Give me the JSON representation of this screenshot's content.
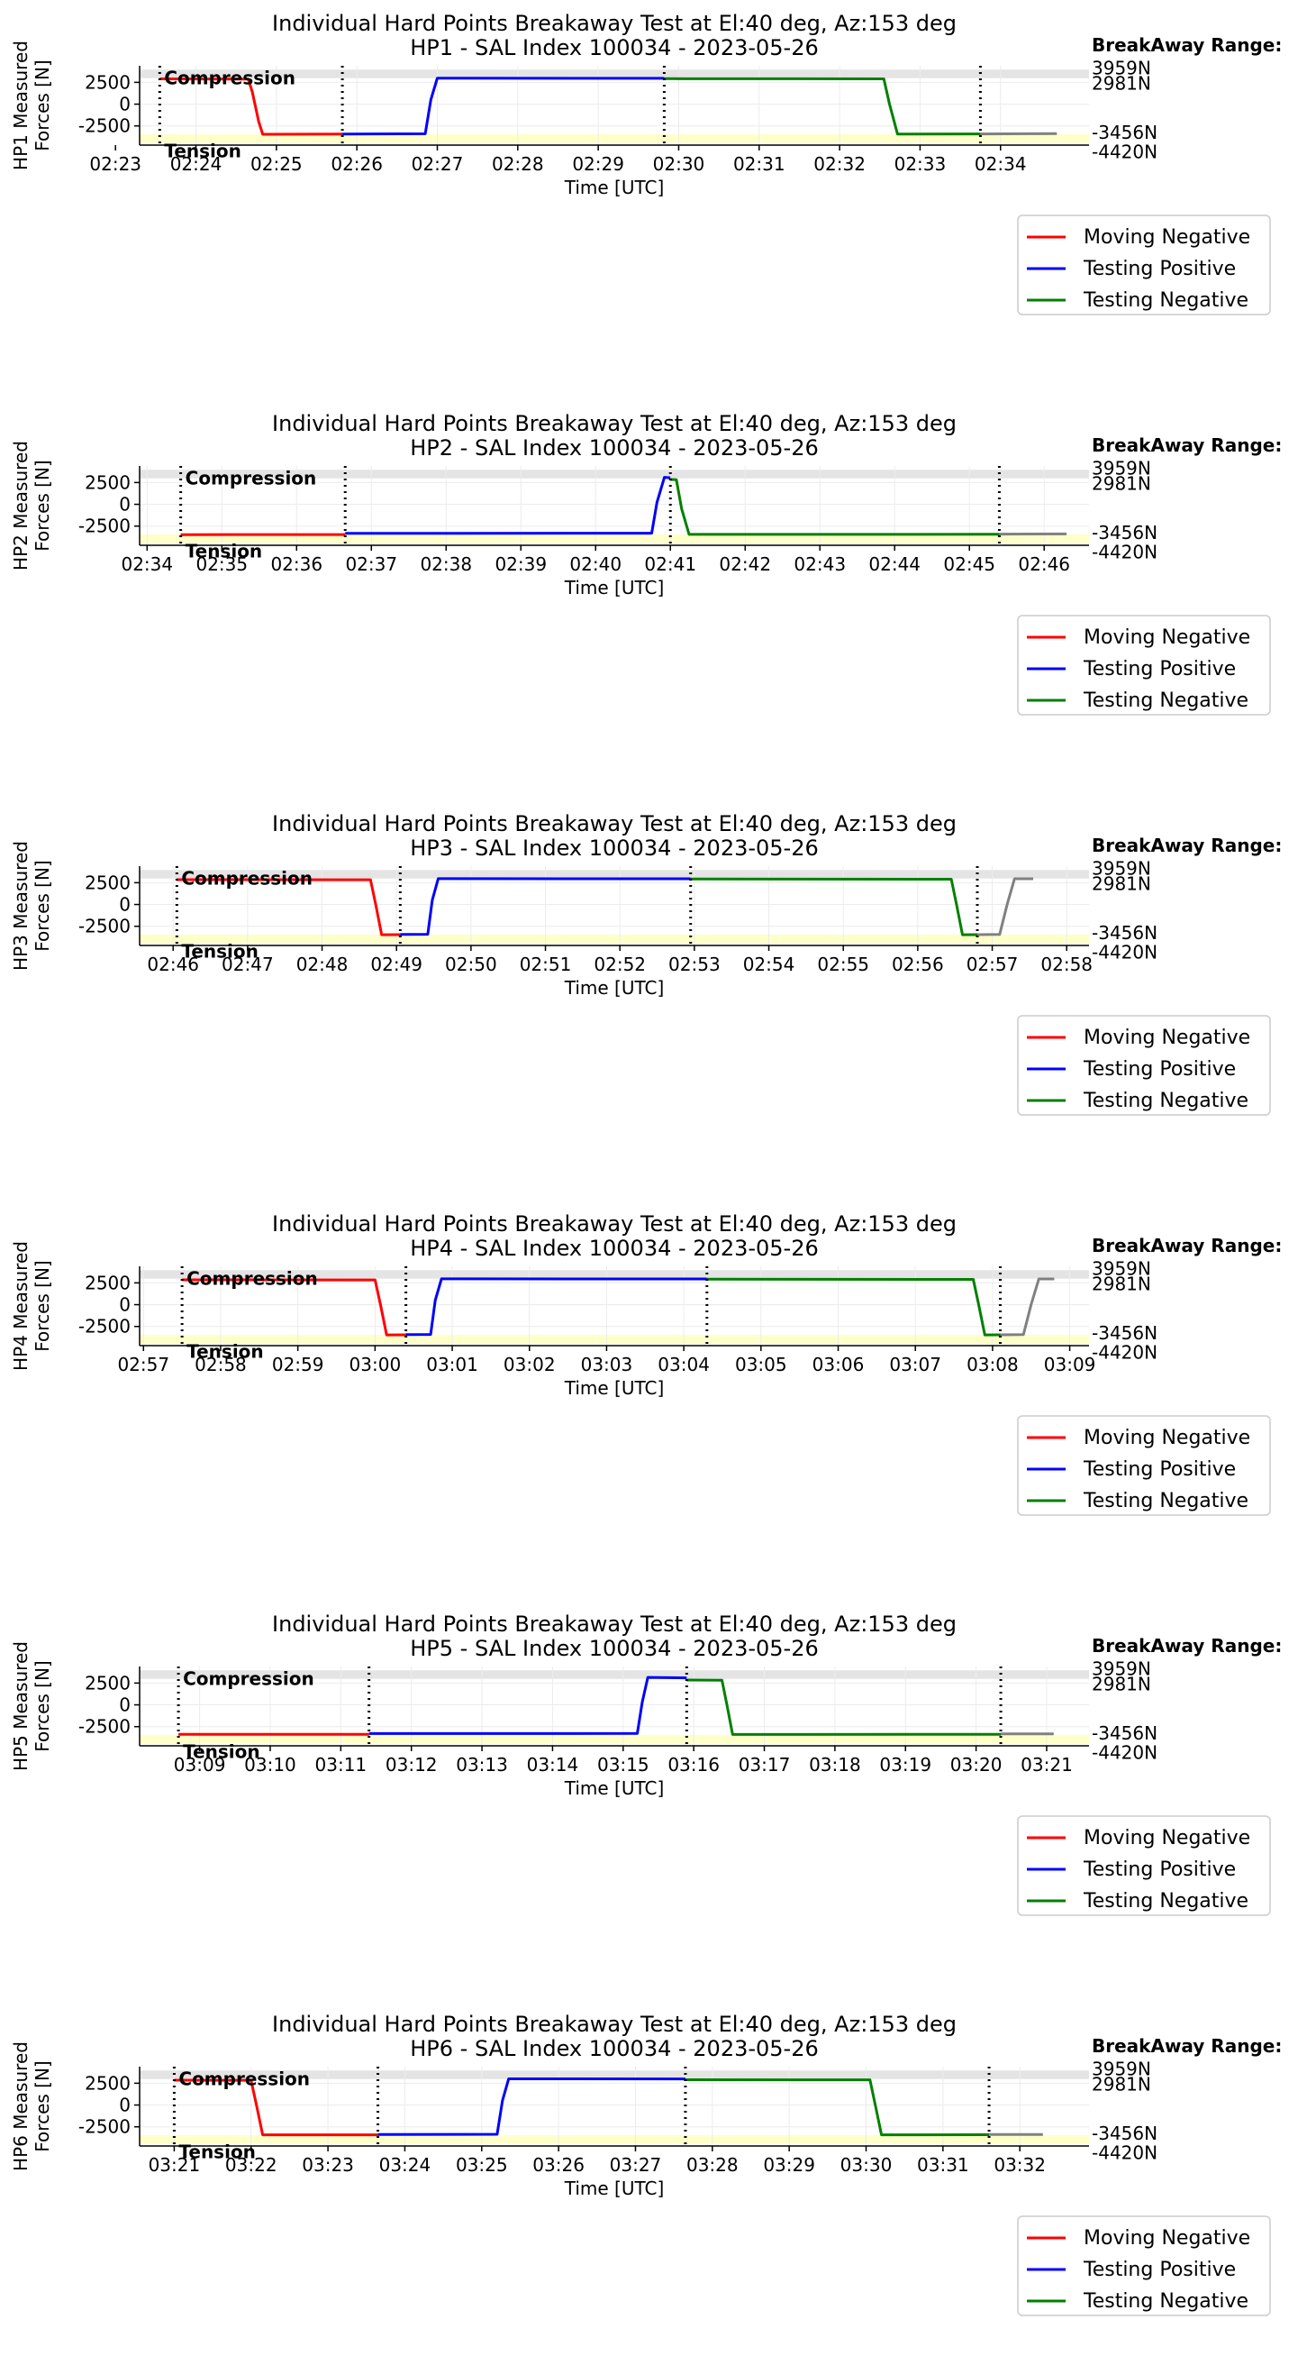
{
  "chart_data": [
    {
      "type": "line",
      "title": "Individual Hard Points Breakaway Test at El:40 deg, Az:153 deg",
      "subtitle": "HP1 - SAL Index 100034 - 2023-05-26",
      "ylabel": [
        "HP1 Measured",
        "Forces [N]"
      ],
      "xlabel": "Time [UTC]",
      "start_minute": 143,
      "xlim": [
        143.3,
        155.1
      ],
      "ylim": [
        -4700,
        4400
      ],
      "yticks": [
        2500,
        0,
        -2500
      ],
      "xticks": [
        "02:23",
        "02:24",
        "02:25",
        "02:26",
        "02:27",
        "02:28",
        "02:29",
        "02:30",
        "02:31",
        "02:32",
        "02:33",
        "02:34"
      ],
      "zones": {
        "compression": {
          "label": "Compression",
          "range": [
            2981,
            3959
          ]
        },
        "tension": {
          "label": "Tension",
          "range": [
            -4420,
            -3456
          ]
        }
      },
      "breakaway": {
        "heading": "BreakAway Range:",
        "labels": [
          {
            "y": 3959,
            "text": "3959N"
          },
          {
            "y": 2981,
            "text": "2981N"
          },
          {
            "y": -3456,
            "text": "-3456N"
          },
          {
            "y": -4420,
            "text": "-4420N"
          }
        ]
      },
      "vlines": [
        143.55,
        145.82,
        149.82,
        153.75
      ],
      "series": [
        {
          "name": "Moving Negative",
          "color": "#ff0000",
          "x": [
            143.55,
            144.65,
            144.7,
            144.78,
            144.83,
            145.82
          ],
          "y": [
            2900,
            2870,
            1400,
            -2000,
            -3460,
            -3430
          ]
        },
        {
          "name": "Testing Positive",
          "color": "#0000ff",
          "x": [
            145.82,
            146.85,
            146.92,
            147.0,
            149.82
          ],
          "y": [
            -3430,
            -3400,
            500,
            2980,
            2960
          ]
        },
        {
          "name": "Testing Negative",
          "color": "#008000",
          "x": [
            149.82,
            152.55,
            152.62,
            152.72,
            153.75
          ],
          "y": [
            2920,
            2900,
            0,
            -3440,
            -3420
          ]
        },
        {
          "name": "",
          "color": "#808080",
          "x": [
            153.75,
            154.7
          ],
          "y": [
            -3420,
            -3380
          ]
        }
      ],
      "legend": [
        "Moving Negative",
        "Testing Positive",
        "Testing Negative"
      ]
    },
    {
      "type": "line",
      "title": "Individual Hard Points Breakaway Test at El:40 deg, Az:153 deg",
      "subtitle": "HP2 - SAL Index 100034 - 2023-05-26",
      "ylabel": [
        "HP2 Measured",
        "Forces [N]"
      ],
      "xlabel": "Time [UTC]",
      "start_minute": 154,
      "xlim": [
        153.9,
        166.6
      ],
      "ylim": [
        -4700,
        4400
      ],
      "yticks": [
        2500,
        0,
        -2500
      ],
      "xticks": [
        "02:34",
        "02:35",
        "02:36",
        "02:37",
        "02:38",
        "02:39",
        "02:40",
        "02:41",
        "02:42",
        "02:43",
        "02:44",
        "02:45",
        "02:46"
      ],
      "zones": {
        "compression": {
          "label": "Compression",
          "range": [
            2981,
            3959
          ]
        },
        "tension": {
          "label": "Tension",
          "range": [
            -4420,
            -3456
          ]
        }
      },
      "breakaway": {
        "heading": "BreakAway Range:",
        "labels": [
          {
            "y": 3959,
            "text": "3959N"
          },
          {
            "y": 2981,
            "text": "2981N"
          },
          {
            "y": -3456,
            "text": "-3456N"
          },
          {
            "y": -4420,
            "text": "-4420N"
          }
        ]
      },
      "vlines": [
        154.45,
        156.65,
        161.0,
        165.4
      ],
      "series": [
        {
          "name": "Moving Negative",
          "color": "#ff0000",
          "x": [
            154.45,
            156.65
          ],
          "y": [
            -3480,
            -3470
          ]
        },
        {
          "name": "Testing Positive",
          "color": "#0000ff",
          "x": [
            156.65,
            160.75,
            160.82,
            160.92,
            161.0
          ],
          "y": [
            -3330,
            -3310,
            200,
            3100,
            3050
          ]
        },
        {
          "name": "Testing Negative",
          "color": "#008000",
          "x": [
            161.0,
            161.08,
            161.15,
            161.25,
            165.4
          ],
          "y": [
            2850,
            2820,
            -500,
            -3450,
            -3440
          ]
        },
        {
          "name": "",
          "color": "#808080",
          "x": [
            165.4,
            166.3
          ],
          "y": [
            -3420,
            -3400
          ]
        }
      ],
      "legend": [
        "Moving Negative",
        "Testing Positive",
        "Testing Negative"
      ]
    },
    {
      "type": "line",
      "title": "Individual Hard Points Breakaway Test at El:40 deg, Az:153 deg",
      "subtitle": "HP3 - SAL Index 100034 - 2023-05-26",
      "ylabel": [
        "HP3 Measured",
        "Forces [N]"
      ],
      "xlabel": "Time [UTC]",
      "start_minute": 166,
      "xlim": [
        165.55,
        178.3
      ],
      "ylim": [
        -4700,
        4400
      ],
      "yticks": [
        2500,
        0,
        -2500
      ],
      "xticks": [
        "02:46",
        "02:47",
        "02:48",
        "02:49",
        "02:50",
        "02:51",
        "02:52",
        "02:53",
        "02:54",
        "02:55",
        "02:56",
        "02:57",
        "02:58"
      ],
      "zones": {
        "compression": {
          "label": "Compression",
          "range": [
            2981,
            3959
          ]
        },
        "tension": {
          "label": "Tension",
          "range": [
            -4420,
            -3456
          ]
        }
      },
      "breakaway": {
        "heading": "BreakAway Range:",
        "labels": [
          {
            "y": 3959,
            "text": "3959N"
          },
          {
            "y": 2981,
            "text": "2981N"
          },
          {
            "y": -3456,
            "text": "-3456N"
          },
          {
            "y": -4420,
            "text": "-4420N"
          }
        ]
      },
      "vlines": [
        166.05,
        169.05,
        172.95,
        176.8
      ],
      "series": [
        {
          "name": "Moving Negative",
          "color": "#ff0000",
          "x": [
            166.05,
            168.65,
            168.72,
            168.8,
            169.05
          ],
          "y": [
            2850,
            2840,
            0,
            -3470,
            -3460
          ]
        },
        {
          "name": "Testing Positive",
          "color": "#0000ff",
          "x": [
            169.05,
            169.42,
            169.48,
            169.56,
            172.95
          ],
          "y": [
            -3440,
            -3420,
            500,
            2960,
            2950
          ]
        },
        {
          "name": "Testing Negative",
          "color": "#008000",
          "x": [
            172.95,
            176.45,
            176.52,
            176.6,
            176.8
          ],
          "y": [
            2920,
            2900,
            0,
            -3470,
            -3460
          ]
        },
        {
          "name": "",
          "color": "#808080",
          "x": [
            176.8,
            177.1,
            177.2,
            177.3,
            177.55
          ],
          "y": [
            -3460,
            -3440,
            0,
            2950,
            2950
          ]
        }
      ],
      "legend": [
        "Moving Negative",
        "Testing Positive",
        "Testing Negative"
      ]
    },
    {
      "type": "line",
      "title": "Individual Hard Points Breakaway Test at El:40 deg, Az:153 deg",
      "subtitle": "HP4 - SAL Index 100034 - 2023-05-26",
      "ylabel": [
        "HP4 Measured",
        "Forces [N]"
      ],
      "xlabel": "Time [UTC]",
      "start_minute": 177,
      "xlim": [
        176.95,
        189.25
      ],
      "ylim": [
        -4700,
        4400
      ],
      "yticks": [
        2500,
        0,
        -2500
      ],
      "xticks": [
        "02:57",
        "02:58",
        "02:59",
        "03:00",
        "03:01",
        "03:02",
        "03:03",
        "03:04",
        "03:05",
        "03:06",
        "03:07",
        "03:08",
        "03:09"
      ],
      "zones": {
        "compression": {
          "label": "Compression",
          "range": [
            2981,
            3959
          ]
        },
        "tension": {
          "label": "Tension",
          "range": [
            -4420,
            -3456
          ]
        }
      },
      "breakaway": {
        "heading": "BreakAway Range:",
        "labels": [
          {
            "y": 3959,
            "text": "3959N"
          },
          {
            "y": 2981,
            "text": "2981N"
          },
          {
            "y": -3456,
            "text": "-3456N"
          },
          {
            "y": -4420,
            "text": "-4420N"
          }
        ]
      },
      "vlines": [
        177.5,
        180.4,
        184.3,
        188.1
      ],
      "series": [
        {
          "name": "Moving Negative",
          "color": "#ff0000",
          "x": [
            177.5,
            180.0,
            180.07,
            180.15,
            180.4
          ],
          "y": [
            2850,
            2840,
            0,
            -3470,
            -3460
          ]
        },
        {
          "name": "Testing Positive",
          "color": "#0000ff",
          "x": [
            180.4,
            180.72,
            180.78,
            180.86,
            184.3
          ],
          "y": [
            -3440,
            -3420,
            500,
            2960,
            2950
          ]
        },
        {
          "name": "Testing Negative",
          "color": "#008000",
          "x": [
            184.3,
            187.75,
            187.82,
            187.9,
            188.1
          ],
          "y": [
            2920,
            2900,
            0,
            -3470,
            -3460
          ]
        },
        {
          "name": "",
          "color": "#808080",
          "x": [
            188.1,
            188.4,
            188.5,
            188.6,
            188.8
          ],
          "y": [
            -3460,
            -3440,
            0,
            2950,
            2950
          ]
        }
      ],
      "legend": [
        "Moving Negative",
        "Testing Positive",
        "Testing Negative"
      ]
    },
    {
      "type": "line",
      "title": "Individual Hard Points Breakaway Test at El:40 deg, Az:153 deg",
      "subtitle": "HP5 - SAL Index 100034 - 2023-05-26",
      "ylabel": [
        "HP5 Measured",
        "Forces [N]"
      ],
      "xlabel": "Time [UTC]",
      "start_minute": 189,
      "xlim": [
        188.15,
        201.6
      ],
      "ylim": [
        -4700,
        4400
      ],
      "yticks": [
        2500,
        0,
        -2500
      ],
      "xticks": [
        "03:09",
        "03:10",
        "03:11",
        "03:12",
        "03:13",
        "03:14",
        "03:15",
        "03:16",
        "03:17",
        "03:18",
        "03:19",
        "03:20",
        "03:21"
      ],
      "zones": {
        "compression": {
          "label": "Compression",
          "range": [
            2981,
            3959
          ]
        },
        "tension": {
          "label": "Tension",
          "range": [
            -4420,
            -3456
          ]
        }
      },
      "breakaway": {
        "heading": "BreakAway Range:",
        "labels": [
          {
            "y": 3959,
            "text": "3959N"
          },
          {
            "y": 2981,
            "text": "2981N"
          },
          {
            "y": -3456,
            "text": "-3456N"
          },
          {
            "y": -4420,
            "text": "-4420N"
          }
        ]
      },
      "vlines": [
        188.7,
        191.4,
        195.9,
        200.35
      ],
      "series": [
        {
          "name": "Moving Negative",
          "color": "#ff0000",
          "x": [
            188.7,
            191.4
          ],
          "y": [
            -3380,
            -3390
          ]
        },
        {
          "name": "Testing Positive",
          "color": "#0000ff",
          "x": [
            191.4,
            195.2,
            195.27,
            195.35,
            195.9
          ],
          "y": [
            -3290,
            -3280,
            300,
            3150,
            3100
          ]
        },
        {
          "name": "Testing Negative",
          "color": "#008000",
          "x": [
            195.9,
            196.4,
            196.47,
            196.55,
            200.35
          ],
          "y": [
            2850,
            2830,
            0,
            -3400,
            -3380
          ]
        },
        {
          "name": "",
          "color": "#808080",
          "x": [
            200.35,
            201.1
          ],
          "y": [
            -3340,
            -3320
          ]
        }
      ],
      "legend": [
        "Moving Negative",
        "Testing Positive",
        "Testing Negative"
      ]
    },
    {
      "type": "line",
      "title": "Individual Hard Points Breakaway Test at El:40 deg, Az:153 deg",
      "subtitle": "HP6 - SAL Index 100034 - 2023-05-26",
      "ylabel": [
        "HP6 Measured",
        "Forces [N]"
      ],
      "xlabel": "Time [UTC]",
      "start_minute": 201,
      "xlim": [
        200.55,
        212.9
      ],
      "ylim": [
        -4700,
        4400
      ],
      "yticks": [
        2500,
        0,
        -2500
      ],
      "xticks": [
        "03:21",
        "03:22",
        "03:23",
        "03:24",
        "03:25",
        "03:26",
        "03:27",
        "03:28",
        "03:29",
        "03:30",
        "03:31",
        "03:32"
      ],
      "zones": {
        "compression": {
          "label": "Compression",
          "range": [
            2981,
            3959
          ]
        },
        "tension": {
          "label": "Tension",
          "range": [
            -4420,
            -3456
          ]
        }
      },
      "breakaway": {
        "heading": "BreakAway Range:",
        "labels": [
          {
            "y": 3959,
            "text": "3959N"
          },
          {
            "y": 2981,
            "text": "2981N"
          },
          {
            "y": -3456,
            "text": "-3456N"
          },
          {
            "y": -4420,
            "text": "-4420N"
          }
        ]
      },
      "vlines": [
        201.0,
        203.65,
        207.65,
        211.6
      ],
      "series": [
        {
          "name": "Moving Negative",
          "color": "#ff0000",
          "x": [
            201.0,
            202.0,
            202.07,
            202.15,
            203.65
          ],
          "y": [
            2850,
            2840,
            0,
            -3420,
            -3420
          ]
        },
        {
          "name": "Testing Positive",
          "color": "#0000ff",
          "x": [
            203.65,
            205.2,
            205.27,
            205.35,
            207.65
          ],
          "y": [
            -3380,
            -3360,
            500,
            3000,
            2990
          ]
        },
        {
          "name": "Testing Negative",
          "color": "#008000",
          "x": [
            207.65,
            210.05,
            210.12,
            210.2,
            211.6
          ],
          "y": [
            2900,
            2890,
            0,
            -3420,
            -3410
          ]
        },
        {
          "name": "",
          "color": "#808080",
          "x": [
            211.6,
            212.3
          ],
          "y": [
            -3390,
            -3380
          ]
        }
      ],
      "legend": [
        "Moving Negative",
        "Testing Positive",
        "Testing Negative"
      ]
    }
  ]
}
